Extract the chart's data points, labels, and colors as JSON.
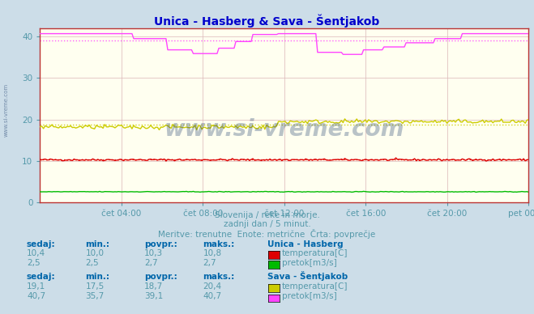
{
  "title": "Unica - Hasberg & Sava - Šentjakob",
  "bg_color": "#ccdde8",
  "plot_bg_color": "#fffff0",
  "grid_color": "#ddbbbb",
  "title_color": "#0000cc",
  "axis_label_color": "#5599aa",
  "text_color": "#5599aa",
  "bold_text_color": "#0066aa",
  "ylim": [
    0,
    42
  ],
  "yticks": [
    0,
    10,
    20,
    30,
    40
  ],
  "xlabel_ticks": [
    "čet 04:00",
    "čet 08:00",
    "čet 12:00",
    "čet 16:00",
    "čet 20:00",
    "pet 00:00"
  ],
  "x_tick_positions": [
    0.1667,
    0.3333,
    0.5,
    0.6667,
    0.8333,
    1.0
  ],
  "subtitle1": "Slovenija / reke in morje.",
  "subtitle2": "zadnji dan / 5 minut.",
  "subtitle3": "Meritve: trenutne  Enote: metrične  Črta: povprečje",
  "unica_temp_avg": 10.3,
  "unica_temp_min": 10.0,
  "unica_temp_max": 10.8,
  "unica_temp_now": 10.4,
  "unica_flow_avg": 2.7,
  "unica_flow_min": 2.5,
  "unica_flow_max": 2.7,
  "unica_flow_now": 2.5,
  "sava_temp_avg": 18.7,
  "sava_temp_min": 17.5,
  "sava_temp_max": 20.4,
  "sava_temp_now": 19.1,
  "sava_flow_avg": 39.1,
  "sava_flow_min": 35.7,
  "sava_flow_max": 40.7,
  "sava_flow_now": 40.7,
  "unica_temp_color": "#dd0000",
  "unica_flow_color": "#00bb00",
  "sava_temp_color": "#cccc00",
  "sava_flow_color": "#ff44ff",
  "watermark": "www.si-vreme.com",
  "watermark_color": "#1a3a6a",
  "spine_color": "#bb3333"
}
